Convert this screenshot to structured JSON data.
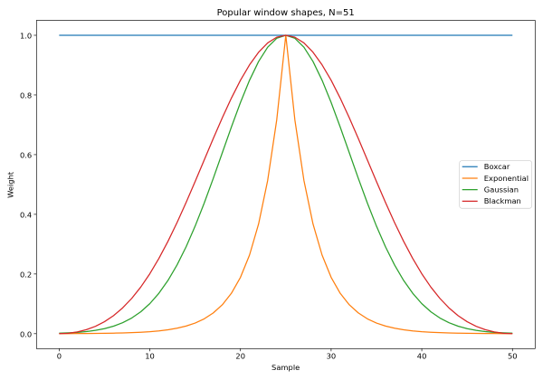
{
  "figure": {
    "background": "#ffffff",
    "title": "Popular window shapes, N=51"
  },
  "chart_data": {
    "type": "line",
    "title": "Popular window shapes, N=51",
    "xlabel": "Sample",
    "ylabel": "Weight",
    "xlim": [
      -2.5,
      52.5
    ],
    "ylim": [
      -0.05,
      1.05
    ],
    "xticks": [
      0,
      10,
      20,
      30,
      40,
      50
    ],
    "xtick_labels": [
      "0",
      "10",
      "20",
      "30",
      "40",
      "50"
    ],
    "yticks": [
      0.0,
      0.2,
      0.4,
      0.6,
      0.8,
      1.0
    ],
    "ytick_labels": [
      "0.0",
      "0.2",
      "0.4",
      "0.6",
      "0.8",
      "1.0"
    ],
    "grid": false,
    "legend": {
      "position": "center right",
      "frame_color": "#cccccc",
      "face_color": "#ffffff"
    },
    "x": [
      0,
      1,
      2,
      3,
      4,
      5,
      6,
      7,
      8,
      9,
      10,
      11,
      12,
      13,
      14,
      15,
      16,
      17,
      18,
      19,
      20,
      21,
      22,
      23,
      24,
      25,
      26,
      27,
      28,
      29,
      30,
      31,
      32,
      33,
      34,
      35,
      36,
      37,
      38,
      39,
      40,
      41,
      42,
      43,
      44,
      45,
      46,
      47,
      48,
      49,
      50
    ],
    "series": [
      {
        "name": "Boxcar",
        "color": "#1f77b4",
        "values": [
          1,
          1,
          1,
          1,
          1,
          1,
          1,
          1,
          1,
          1,
          1,
          1,
          1,
          1,
          1,
          1,
          1,
          1,
          1,
          1,
          1,
          1,
          1,
          1,
          1,
          1,
          1,
          1,
          1,
          1,
          1,
          1,
          1,
          1,
          1,
          1,
          1,
          1,
          1,
          1,
          1,
          1,
          1,
          1,
          1,
          1,
          1,
          1,
          1,
          1,
          1
        ]
      },
      {
        "name": "Exponential",
        "color": "#ff7f0e",
        "values": [
          0.00024,
          0.00034,
          0.00047,
          0.00065,
          0.00091,
          0.00127,
          0.00178,
          0.00248,
          0.00346,
          0.00483,
          0.00674,
          0.0094,
          0.01312,
          0.01832,
          0.02556,
          0.03567,
          0.04979,
          0.06948,
          0.09697,
          0.13534,
          0.18888,
          0.2636,
          0.36788,
          0.51342,
          0.71653,
          1.0,
          0.71653,
          0.51342,
          0.36788,
          0.2636,
          0.18888,
          0.13534,
          0.09697,
          0.06948,
          0.04979,
          0.03567,
          0.02556,
          0.01832,
          0.01312,
          0.0094,
          0.00674,
          0.00483,
          0.00346,
          0.00248,
          0.00178,
          0.00127,
          0.00091,
          0.00065,
          0.00047,
          0.00034,
          0.00024
        ]
      },
      {
        "name": "Gaussian",
        "color": "#2ca02c",
        "values": [
          0.0017,
          0.0028,
          0.00453,
          0.00716,
          0.01111,
          0.01688,
          0.02513,
          0.03666,
          0.05239,
          0.07337,
          0.10067,
          0.13534,
          0.17826,
          0.23007,
          0.29092,
          0.36045,
          0.43756,
          0.52045,
          0.60653,
          0.69257,
          0.77484,
          0.84937,
          0.91225,
          0.96001,
          0.98985,
          1.0,
          0.98985,
          0.96001,
          0.91225,
          0.84937,
          0.77484,
          0.69257,
          0.60653,
          0.52045,
          0.43756,
          0.36045,
          0.29092,
          0.23007,
          0.17826,
          0.13534,
          0.10067,
          0.07337,
          0.05239,
          0.03666,
          0.02513,
          0.01688,
          0.01111,
          0.00716,
          0.00453,
          0.0028,
          0.0017
        ]
      },
      {
        "name": "Blackman",
        "color": "#d62728",
        "values": [
          0.0,
          0.00143,
          0.00581,
          0.01343,
          0.02471,
          0.04021,
          0.06054,
          0.0863,
          0.11802,
          0.15612,
          0.20077,
          0.25193,
          0.30924,
          0.37203,
          0.43931,
          0.50979,
          0.5819,
          0.65385,
          0.72372,
          0.78951,
          0.84923,
          0.90102,
          0.94321,
          0.9744,
          0.99354,
          1.0,
          0.99354,
          0.9744,
          0.94321,
          0.90102,
          0.84923,
          0.78951,
          0.72372,
          0.65385,
          0.5819,
          0.50979,
          0.43931,
          0.37203,
          0.30924,
          0.25193,
          0.20077,
          0.15612,
          0.11802,
          0.0863,
          0.06054,
          0.04021,
          0.02471,
          0.01343,
          0.00581,
          0.00143,
          0.0
        ]
      }
    ]
  }
}
